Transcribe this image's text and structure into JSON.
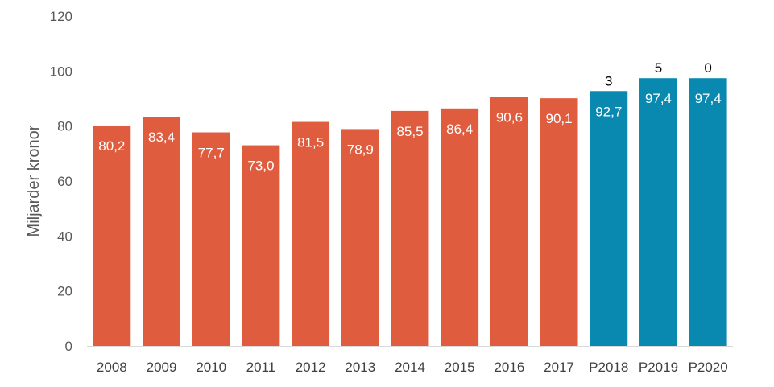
{
  "chart_data": {
    "type": "bar",
    "title": "",
    "xlabel": "",
    "ylabel": "Miljarder kronor",
    "ylim": [
      0,
      120
    ],
    "yticks": [
      0,
      20,
      40,
      60,
      80,
      100,
      120
    ],
    "grid": false,
    "legend": "none",
    "categories": [
      "2008",
      "2009",
      "2010",
      "2011",
      "2012",
      "2013",
      "2014",
      "2015",
      "2016",
      "2017",
      "P2018",
      "P2019",
      "P2020"
    ],
    "values": [
      80.2,
      83.4,
      77.7,
      73.0,
      81.5,
      78.9,
      85.5,
      86.4,
      90.6,
      90.1,
      92.7,
      97.4,
      97.4
    ],
    "value_labels": [
      "80,2",
      "83,4",
      "77,7",
      "73,0",
      "81,5",
      "78,9",
      "85,5",
      "86,4",
      "90,6",
      "90,1",
      "92,7",
      "97,4",
      "97,4"
    ],
    "above_labels": [
      "",
      "",
      "",
      "",
      "",
      "",
      "",
      "",
      "",
      "",
      "3",
      "5",
      "0"
    ],
    "bar_colors": [
      "#e05c3e",
      "#e05c3e",
      "#e05c3e",
      "#e05c3e",
      "#e05c3e",
      "#e05c3e",
      "#e05c3e",
      "#e05c3e",
      "#e05c3e",
      "#e05c3e",
      "#0a89b0",
      "#0a89b0",
      "#0a89b0"
    ],
    "axis_color": "#d9d9d9"
  }
}
